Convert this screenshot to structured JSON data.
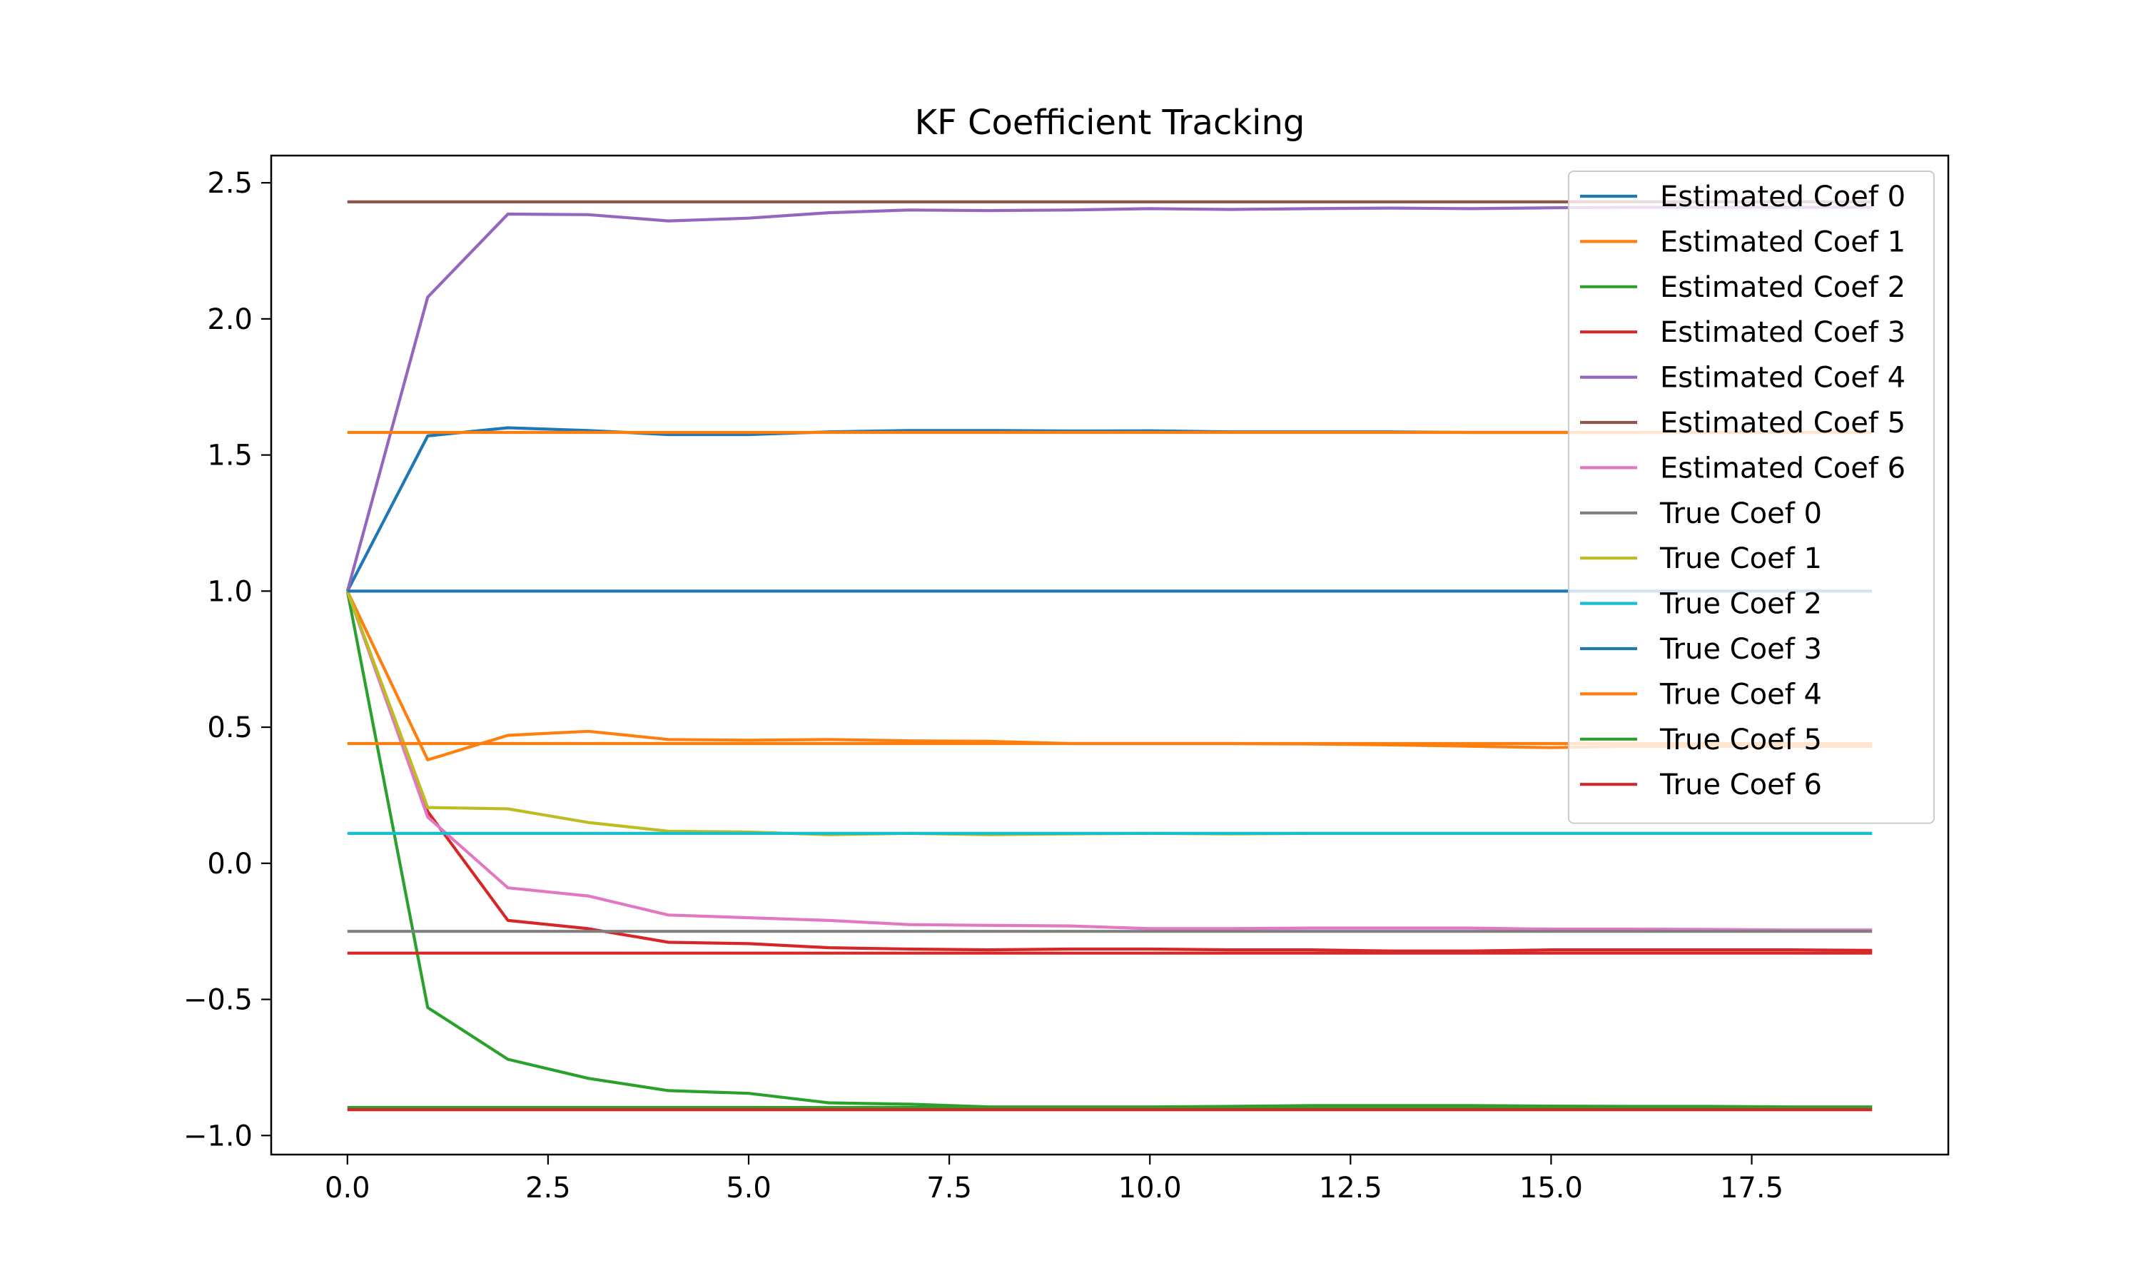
{
  "chart_data": {
    "type": "line",
    "title": "KF Coefficient Tracking",
    "xlabel": "",
    "ylabel": "",
    "xlim": [
      -0.95,
      19.95
    ],
    "ylim": [
      -1.07,
      2.6
    ],
    "xticks": [
      0.0,
      2.5,
      5.0,
      7.5,
      10.0,
      12.5,
      15.0,
      17.5
    ],
    "xtick_labels": [
      "0.0",
      "2.5",
      "5.0",
      "7.5",
      "10.0",
      "12.5",
      "15.0",
      "17.5"
    ],
    "yticks": [
      -1.0,
      -0.5,
      0.0,
      0.5,
      1.0,
      1.5,
      2.0,
      2.5
    ],
    "ytick_labels": [
      "−1.0",
      "−0.5",
      "0.0",
      "0.5",
      "1.0",
      "1.5",
      "2.0",
      "2.5"
    ],
    "grid": false,
    "legend_position": "top-right",
    "x": [
      0,
      1,
      2,
      3,
      4,
      5,
      6,
      7,
      8,
      9,
      10,
      11,
      12,
      13,
      14,
      15,
      16,
      17,
      18,
      19
    ],
    "series": [
      {
        "name": "Estimated Coef 0",
        "color": "#1f77b4",
        "values": [
          1.0,
          1.57,
          1.6,
          1.59,
          1.575,
          1.575,
          1.585,
          1.59,
          1.59,
          1.588,
          1.589,
          1.585,
          1.585,
          1.585,
          1.583,
          1.583,
          1.583,
          1.583,
          1.583,
          1.583
        ]
      },
      {
        "name": "Estimated Coef 1",
        "color": "#ff7f0e",
        "values": [
          1.0,
          0.38,
          0.47,
          0.485,
          0.455,
          0.452,
          0.455,
          0.45,
          0.448,
          0.44,
          0.44,
          0.44,
          0.438,
          0.435,
          0.43,
          0.425,
          0.43,
          0.43,
          0.43,
          0.43
        ]
      },
      {
        "name": "Estimated Coef 2",
        "color": "#2ca02c",
        "values": [
          1.0,
          -0.53,
          -0.72,
          -0.79,
          -0.835,
          -0.845,
          -0.88,
          -0.885,
          -0.895,
          -0.895,
          -0.895,
          -0.893,
          -0.89,
          -0.89,
          -0.89,
          -0.892,
          -0.893,
          -0.893,
          -0.895,
          -0.895
        ]
      },
      {
        "name": "Estimated Coef 3",
        "color": "#d62728",
        "values": [
          1.0,
          0.19,
          -0.21,
          -0.24,
          -0.29,
          -0.295,
          -0.31,
          -0.315,
          -0.318,
          -0.315,
          -0.315,
          -0.318,
          -0.318,
          -0.322,
          -0.322,
          -0.318,
          -0.318,
          -0.318,
          -0.318,
          -0.32
        ]
      },
      {
        "name": "Estimated Coef 4",
        "color": "#9467bd",
        "values": [
          1.0,
          2.08,
          2.385,
          2.383,
          2.36,
          2.37,
          2.39,
          2.4,
          2.398,
          2.4,
          2.405,
          2.402,
          2.405,
          2.407,
          2.405,
          2.408,
          2.41,
          2.41,
          2.41,
          2.41
        ]
      },
      {
        "name": "Estimated Coef 5",
        "color": "#8c564b",
        "values": [
          2.43,
          2.43,
          2.43,
          2.43,
          2.43,
          2.43,
          2.43,
          2.43,
          2.43,
          2.43,
          2.43,
          2.43,
          2.43,
          2.43,
          2.43,
          2.43,
          2.43,
          2.43,
          2.43,
          2.43
        ]
      },
      {
        "name": "Estimated Coef 6",
        "color": "#e377c2",
        "values": [
          1.0,
          0.17,
          -0.09,
          -0.12,
          -0.19,
          -0.2,
          -0.21,
          -0.225,
          -0.228,
          -0.23,
          -0.24,
          -0.24,
          -0.238,
          -0.238,
          -0.238,
          -0.242,
          -0.242,
          -0.243,
          -0.245,
          -0.245
        ]
      },
      {
        "name": "True Coef 0",
        "color": "#7f7f7f",
        "values": [
          -0.25,
          -0.25,
          -0.25,
          -0.25,
          -0.25,
          -0.25,
          -0.25,
          -0.25,
          -0.25,
          -0.25,
          -0.25,
          -0.25,
          -0.25,
          -0.25,
          -0.25,
          -0.25,
          -0.25,
          -0.25,
          -0.25,
          -0.25
        ]
      },
      {
        "name": "True Coef 1",
        "color": "#bcbd22",
        "values": [
          1.0,
          0.205,
          0.2,
          0.15,
          0.118,
          0.115,
          0.105,
          0.11,
          0.105,
          0.108,
          0.11,
          0.108,
          0.11,
          0.11,
          0.11,
          0.11,
          0.11,
          0.11,
          0.11,
          0.11
        ]
      },
      {
        "name": "True Coef 2",
        "color": "#17becf",
        "values": [
          0.11,
          0.11,
          0.11,
          0.11,
          0.11,
          0.11,
          0.11,
          0.11,
          0.11,
          0.11,
          0.11,
          0.11,
          0.11,
          0.11,
          0.11,
          0.11,
          0.11,
          0.11,
          0.11,
          0.11
        ]
      },
      {
        "name": "True Coef 3",
        "color": "#1f77b4",
        "values": [
          1.0,
          1.0,
          1.0,
          1.0,
          1.0,
          1.0,
          1.0,
          1.0,
          1.0,
          1.0,
          1.0,
          1.0,
          1.0,
          1.0,
          1.0,
          1.0,
          1.0,
          1.0,
          1.0,
          1.0
        ]
      },
      {
        "name": "True Coef 4",
        "color": "#ff7f0e",
        "values": [
          1.583,
          1.583,
          1.583,
          1.583,
          1.583,
          1.583,
          1.583,
          1.583,
          1.583,
          1.583,
          1.583,
          1.583,
          1.583,
          1.583,
          1.583,
          1.583,
          1.583,
          1.583,
          1.583,
          1.583
        ]
      },
      {
        "name": "True Coef 5",
        "color": "#2ca02c",
        "values": [
          -0.897,
          -0.897,
          -0.897,
          -0.897,
          -0.897,
          -0.897,
          -0.897,
          -0.897,
          -0.897,
          -0.897,
          -0.897,
          -0.897,
          -0.897,
          -0.897,
          -0.897,
          -0.897,
          -0.897,
          -0.897,
          -0.897,
          -0.897
        ]
      },
      {
        "name": "True Coef 6",
        "color": "#d62728",
        "values": [
          -0.33,
          -0.33,
          -0.33,
          -0.33,
          -0.33,
          -0.33,
          -0.33,
          -0.33,
          -0.33,
          -0.33,
          -0.33,
          -0.33,
          -0.33,
          -0.33,
          -0.33,
          -0.33,
          -0.33,
          -0.33,
          -0.33,
          -0.33
        ]
      }
    ]
  },
  "extra_segments": [
    {
      "series": "True Coef 1",
      "color": "#ff7f0e",
      "points": [
        [
          0,
          0.44
        ],
        [
          19,
          0.44
        ]
      ]
    },
    {
      "series": "True Coef 5",
      "color": "#d62728",
      "points": [
        [
          0,
          -0.905
        ],
        [
          19,
          -0.905
        ]
      ]
    }
  ]
}
